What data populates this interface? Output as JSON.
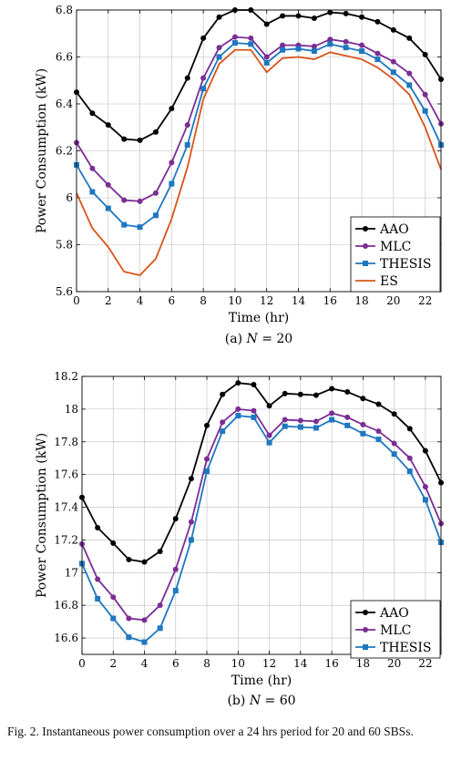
{
  "chart_data": [
    {
      "type": "line",
      "subcaption": "(a) N = 20",
      "xlabel": "Time (hr)",
      "ylabel": "Power Consumption (kW)",
      "xlim": [
        0,
        23
      ],
      "ylim": [
        5.6,
        6.8
      ],
      "xticks": [
        0,
        2,
        4,
        6,
        8,
        10,
        12,
        14,
        16,
        18,
        20,
        22
      ],
      "yticks": [
        5.6,
        5.8,
        6,
        6.2,
        6.4,
        6.6,
        6.8
      ],
      "ytick_labels": [
        "5.6",
        "5.8",
        "6",
        "6.2",
        "6.4",
        "6.6",
        "6.8"
      ],
      "grid": true,
      "legend_position": "bottom-right",
      "x": [
        0,
        1,
        2,
        3,
        4,
        5,
        6,
        7,
        8,
        9,
        10,
        11,
        12,
        13,
        14,
        15,
        16,
        17,
        18,
        19,
        20,
        21,
        22,
        23
      ],
      "series": [
        {
          "name": "AAO",
          "color": "#000000",
          "marker": "circle",
          "values": [
            6.45,
            6.36,
            6.31,
            6.25,
            6.245,
            6.28,
            6.38,
            6.51,
            6.68,
            6.77,
            6.8,
            6.8,
            6.74,
            6.775,
            6.775,
            6.765,
            6.79,
            6.785,
            6.77,
            6.75,
            6.715,
            6.68,
            6.61,
            6.505
          ]
        },
        {
          "name": "MLC",
          "color": "#7b2d94",
          "marker": "circle",
          "values": [
            6.235,
            6.125,
            6.055,
            5.99,
            5.985,
            6.02,
            6.15,
            6.31,
            6.51,
            6.64,
            6.685,
            6.68,
            6.6,
            6.65,
            6.65,
            6.645,
            6.675,
            6.665,
            6.65,
            6.615,
            6.58,
            6.53,
            6.44,
            6.315
          ]
        },
        {
          "name": "THESIS",
          "color": "#1f77bf",
          "marker": "square",
          "values": [
            6.14,
            6.025,
            5.955,
            5.885,
            5.875,
            5.925,
            6.06,
            6.225,
            6.465,
            6.6,
            6.66,
            6.655,
            6.575,
            6.63,
            6.635,
            6.625,
            6.655,
            6.64,
            6.625,
            6.59,
            6.535,
            6.48,
            6.37,
            6.225
          ]
        },
        {
          "name": "ES",
          "color": "#d9541a",
          "marker": "none",
          "values": [
            6.02,
            5.87,
            5.79,
            5.685,
            5.67,
            5.74,
            5.91,
            6.13,
            6.42,
            6.57,
            6.63,
            6.63,
            6.535,
            6.595,
            6.6,
            6.59,
            6.62,
            6.605,
            6.59,
            6.555,
            6.505,
            6.44,
            6.3,
            6.12
          ]
        }
      ]
    },
    {
      "type": "line",
      "subcaption": "(b) N = 60",
      "xlabel": "Time (hr)",
      "ylabel": "Power Consumption (kW)",
      "xlim": [
        0,
        23
      ],
      "ylim": [
        16.5,
        18.2
      ],
      "xticks": [
        0,
        2,
        4,
        6,
        8,
        10,
        12,
        14,
        16,
        18,
        20,
        22
      ],
      "yticks": [
        16.6,
        16.8,
        17,
        17.2,
        17.4,
        17.6,
        17.8,
        18,
        18.2
      ],
      "ytick_labels": [
        "16.6",
        "16.8",
        "17",
        "17.2",
        "17.4",
        "17.6",
        "17.8",
        "18",
        "18.2"
      ],
      "grid": true,
      "legend_position": "bottom-right",
      "x": [
        0,
        1,
        2,
        3,
        4,
        5,
        6,
        7,
        8,
        9,
        10,
        11,
        12,
        13,
        14,
        15,
        16,
        17,
        18,
        19,
        20,
        21,
        22,
        23
      ],
      "series": [
        {
          "name": "AAO",
          "color": "#000000",
          "marker": "circle",
          "values": [
            17.46,
            17.275,
            17.18,
            17.08,
            17.065,
            17.13,
            17.33,
            17.575,
            17.9,
            18.09,
            18.16,
            18.15,
            18.02,
            18.095,
            18.09,
            18.085,
            18.125,
            18.105,
            18.065,
            18.03,
            17.97,
            17.88,
            17.745,
            17.55
          ]
        },
        {
          "name": "MLC",
          "color": "#7b2d94",
          "marker": "circle",
          "values": [
            17.175,
            16.96,
            16.85,
            16.72,
            16.71,
            16.8,
            17.02,
            17.31,
            17.695,
            17.92,
            18.0,
            17.99,
            17.84,
            17.935,
            17.93,
            17.925,
            17.975,
            17.95,
            17.905,
            17.865,
            17.79,
            17.7,
            17.525,
            17.3
          ]
        },
        {
          "name": "THESIS",
          "color": "#1f77bf",
          "marker": "square",
          "values": [
            17.055,
            16.84,
            16.72,
            16.605,
            16.575,
            16.66,
            16.89,
            17.2,
            17.62,
            17.865,
            17.96,
            17.95,
            17.795,
            17.895,
            17.89,
            17.885,
            17.935,
            17.9,
            17.85,
            17.815,
            17.725,
            17.62,
            17.445,
            17.185
          ]
        }
      ]
    }
  ],
  "figure_caption": "Fig. 2.  Instantaneous power consumption over a 24 hrs period for 20 and 60 SBSs."
}
